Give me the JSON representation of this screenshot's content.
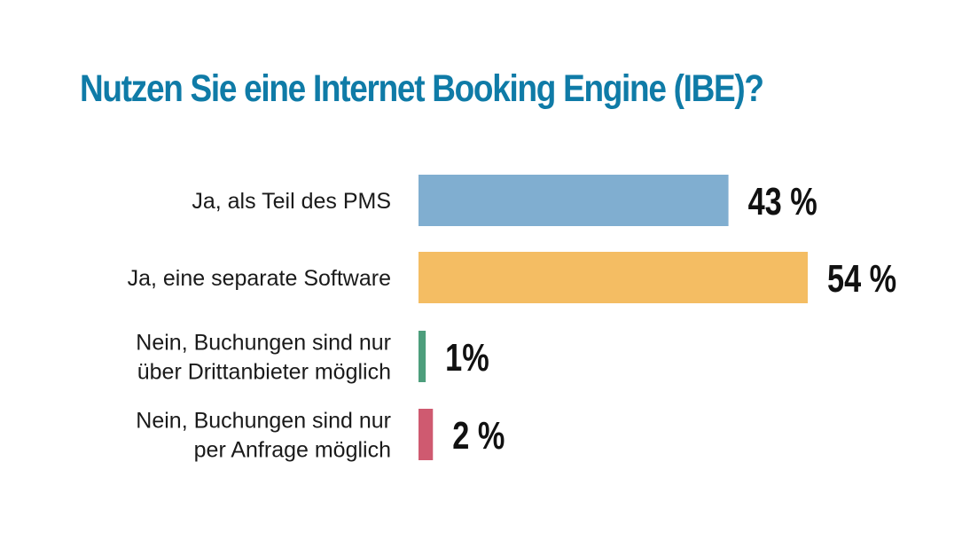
{
  "chart_data": {
    "type": "bar",
    "orientation": "horizontal",
    "title": "Nutzen Sie eine Internet Booking Engine (IBE)?",
    "categories": [
      [
        "Ja, als Teil des PMS"
      ],
      [
        "Ja, eine separate Software"
      ],
      [
        "Nein, Buchungen sind nur",
        "über Drittanbieter möglich"
      ],
      [
        "Nein, Buchungen sind nur",
        "per Anfrage möglich"
      ]
    ],
    "values": [
      43,
      54,
      1,
      2
    ],
    "value_labels": [
      "43 %",
      "54 %",
      "1%",
      "2 %"
    ],
    "unit": "%",
    "xlim": [
      0,
      54
    ],
    "grid": false,
    "legend": "none"
  },
  "colors": {
    "title": "#0f7ba7",
    "bars": [
      "#80aed0",
      "#f4bd63",
      "#4d9e7c",
      "#cf5a70"
    ]
  }
}
